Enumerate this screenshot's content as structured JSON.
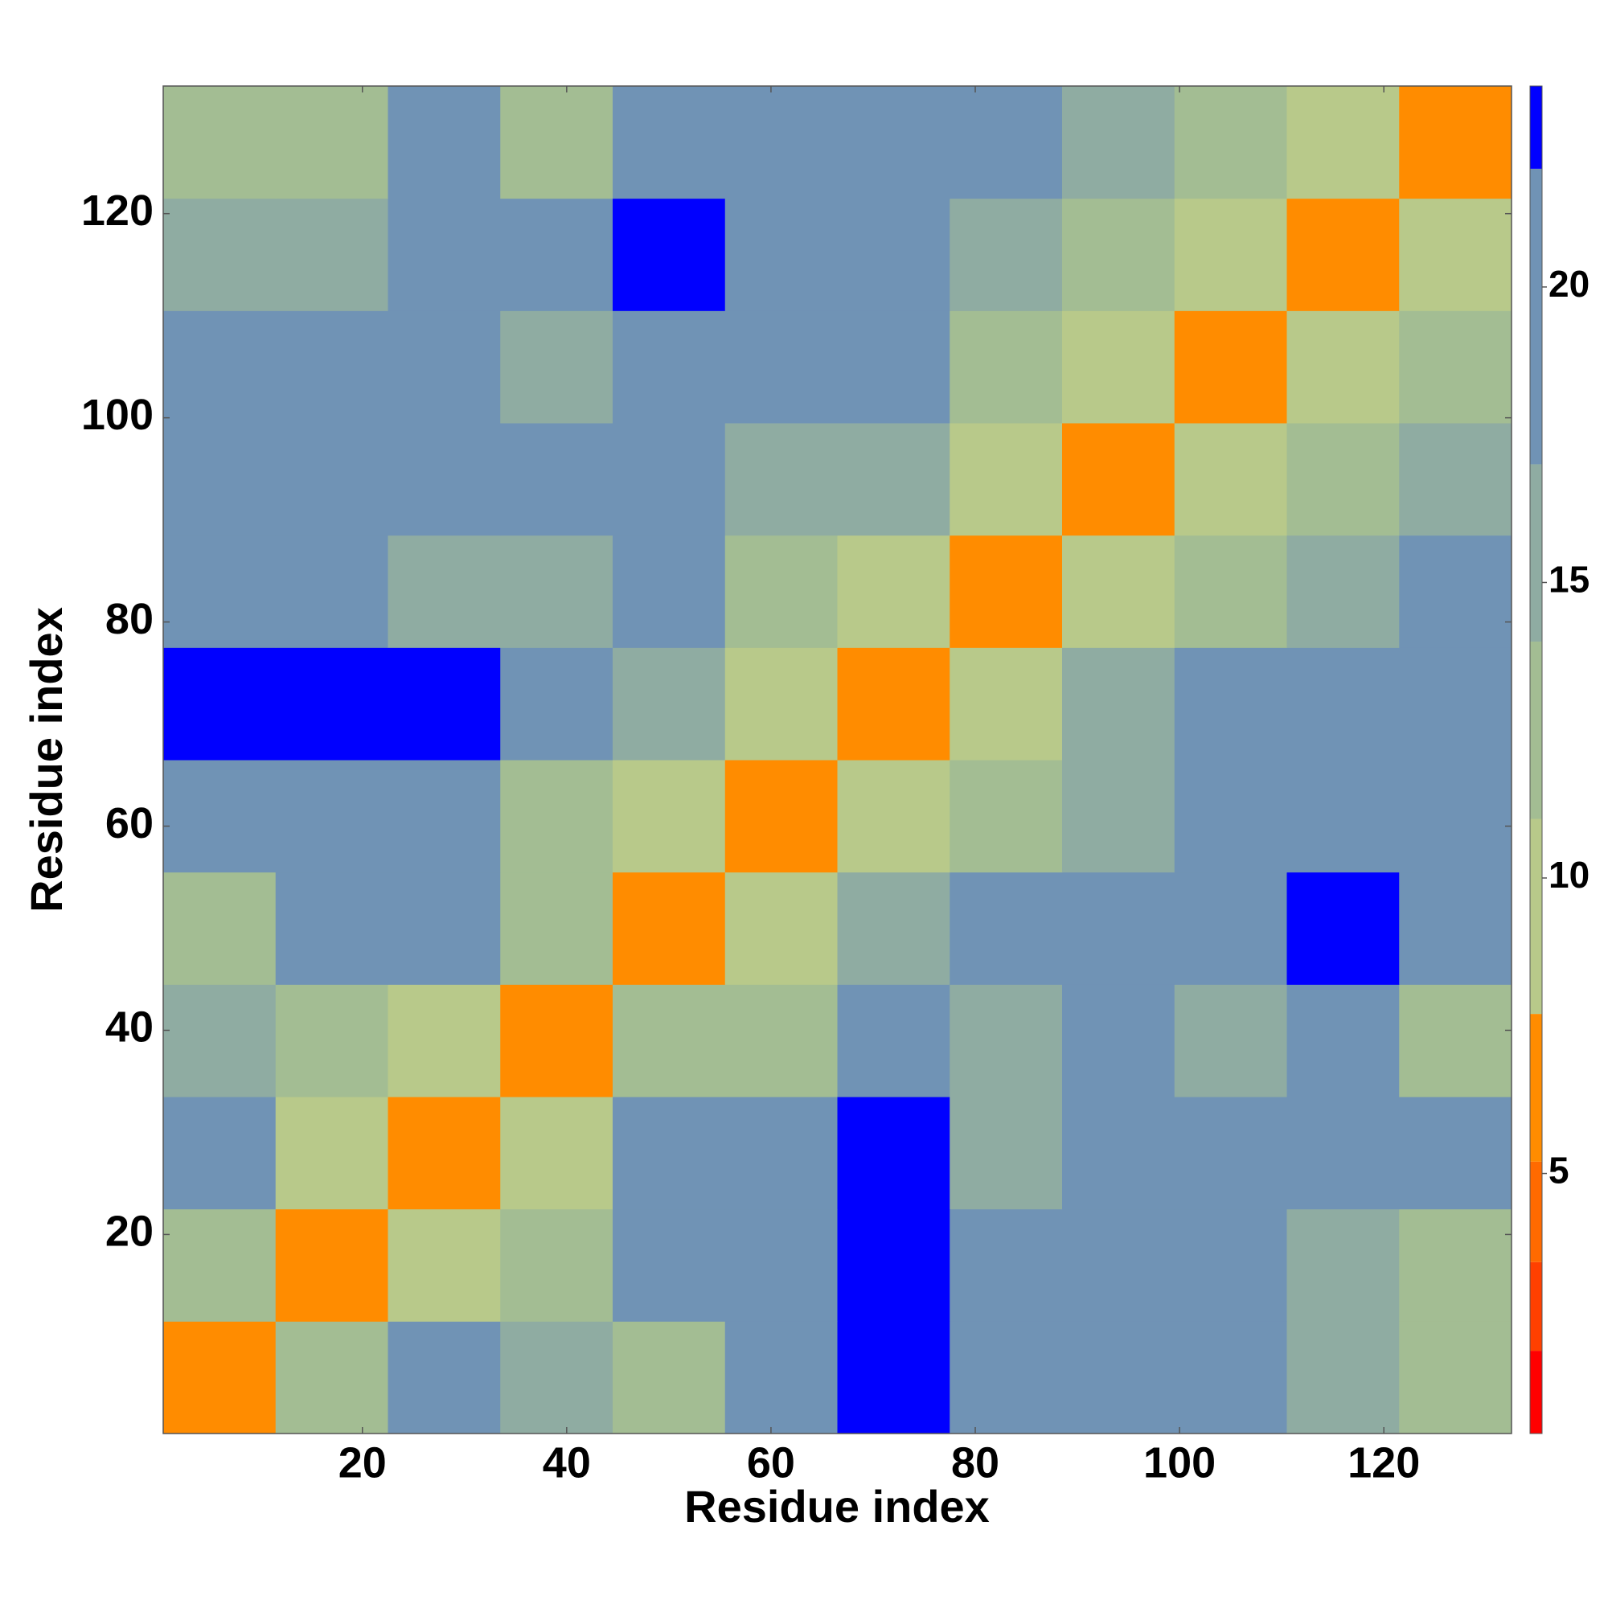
{
  "chart_data": {
    "type": "heatmap",
    "xlabel": "Residue index",
    "ylabel": "Residue index",
    "xbins": [
      0.5,
      11.5,
      22.5,
      33.5,
      44.5,
      55.5,
      66.5,
      77.5,
      88.5,
      99.5,
      110.5,
      121.5,
      132.5
    ],
    "ybins": [
      0.5,
      11.5,
      22.5,
      33.5,
      44.5,
      55.5,
      66.5,
      77.5,
      88.5,
      99.5,
      110.5,
      121.5,
      132.5
    ],
    "z": [
      [
        6,
        12,
        18,
        16,
        14,
        20,
        23,
        22,
        18,
        20,
        16,
        12
      ],
      [
        12,
        6,
        10,
        14,
        22,
        18,
        23,
        18,
        21,
        22,
        16,
        13
      ],
      [
        18,
        10,
        6,
        10,
        21,
        18,
        23,
        17,
        22,
        20,
        18,
        20
      ],
      [
        16,
        14,
        10,
        6,
        12,
        13,
        20,
        15,
        20,
        16,
        18,
        14
      ],
      [
        14,
        22,
        21,
        12,
        6,
        10,
        16,
        18,
        21,
        22,
        23,
        20
      ],
      [
        20,
        18,
        18,
        13,
        10,
        6,
        10,
        14,
        17,
        20,
        21,
        18
      ],
      [
        23,
        23,
        23,
        20,
        16,
        10,
        6,
        10,
        15,
        18,
        21,
        22
      ],
      [
        22,
        18,
        17,
        15,
        18,
        14,
        10,
        6,
        10,
        13,
        17,
        20
      ],
      [
        18,
        21,
        22,
        20,
        21,
        17,
        15,
        10,
        6,
        10,
        13,
        17
      ],
      [
        20,
        22,
        20,
        16,
        22,
        20,
        18,
        13,
        10,
        6,
        10,
        13
      ],
      [
        16,
        16,
        18,
        18,
        23,
        21,
        21,
        17,
        13,
        10,
        6,
        10
      ],
      [
        12,
        13,
        20,
        14,
        20,
        18,
        22,
        20,
        17,
        13,
        10,
        6
      ]
    ],
    "xlim": [
      0.5,
      132.5
    ],
    "ylim": [
      0.5,
      132.5
    ],
    "xticks": [
      20,
      40,
      60,
      80,
      100,
      120
    ],
    "yticks": [
      20,
      40,
      60,
      80,
      100,
      120
    ],
    "zlim": [
      0.6,
      23.4
    ],
    "zticks": [
      5,
      10,
      15,
      20
    ],
    "colorscale": [
      {
        "upto": 2,
        "color": "#ff0000"
      },
      {
        "upto": 3.5,
        "color": "#ff4000"
      },
      {
        "upto": 5.2,
        "color": "#ff6a00"
      },
      {
        "upto": 7.7,
        "color": "#ff8c00"
      },
      {
        "upto": 11,
        "color": "#b8c98a"
      },
      {
        "upto": 14,
        "color": "#a3bd93"
      },
      {
        "upto": 17,
        "color": "#8facA2"
      },
      {
        "upto": 22,
        "color": "#7093b5"
      },
      {
        "upto": 23.4,
        "color": "#0000ff"
      }
    ]
  }
}
